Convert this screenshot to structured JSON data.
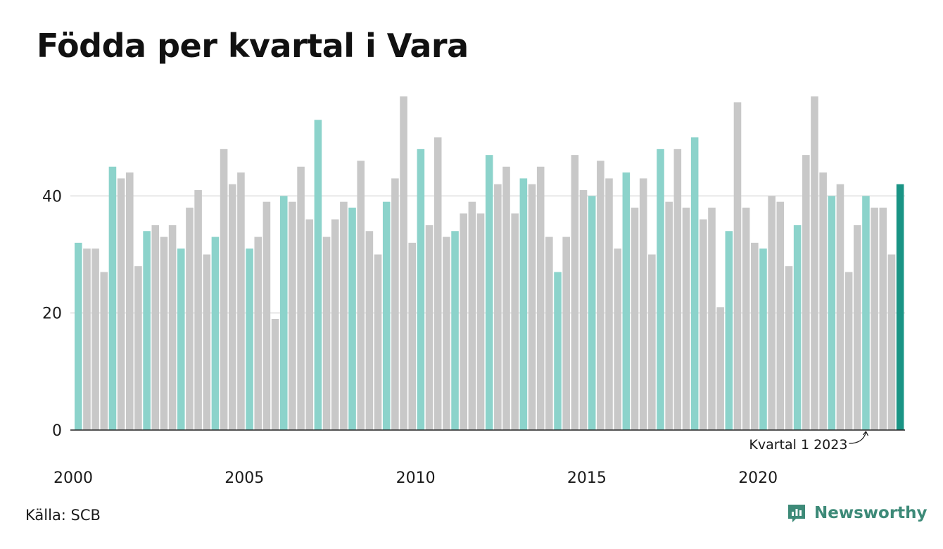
{
  "page": {
    "title": "Födda per kvartal i Vara",
    "source": "Källa: SCB",
    "brand": "Newsworthy"
  },
  "colors": {
    "q1": "#8cd3cb",
    "other": "#c8c8c8",
    "latest": "#1a9485",
    "grid": "#dddddd",
    "axis": "#222222",
    "brand": "#3d8a78"
  },
  "icons": {
    "brand_logo": "newsworthy-chart-bubble-icon"
  },
  "chart_data": {
    "type": "bar",
    "title": "Födda per kvartal i Vara",
    "xlabel": "",
    "ylabel": "",
    "ylim": [
      0,
      57
    ],
    "yticks": [
      0,
      20,
      40
    ],
    "grid": true,
    "x_tick_labels": [
      "2000",
      "2005",
      "2010",
      "2015",
      "2020"
    ],
    "start_year": 2000,
    "annotation": "Kvartal 1 2023",
    "annotation_index": 92,
    "values": [
      32,
      31,
      31,
      27,
      45,
      43,
      44,
      28,
      34,
      35,
      33,
      35,
      31,
      38,
      41,
      30,
      33,
      48,
      42,
      44,
      31,
      33,
      39,
      19,
      40,
      39,
      45,
      36,
      53,
      33,
      36,
      39,
      38,
      46,
      34,
      30,
      39,
      43,
      57,
      32,
      48,
      35,
      50,
      33,
      34,
      37,
      39,
      37,
      47,
      42,
      45,
      37,
      43,
      42,
      45,
      33,
      27,
      33,
      47,
      41,
      40,
      46,
      43,
      31,
      44,
      38,
      43,
      30,
      48,
      39,
      48,
      38,
      50,
      36,
      38,
      21,
      34,
      56,
      38,
      32,
      31,
      40,
      39,
      28,
      35,
      47,
      57,
      44,
      40,
      42,
      27,
      35,
      40,
      38,
      38,
      30,
      42
    ]
  }
}
